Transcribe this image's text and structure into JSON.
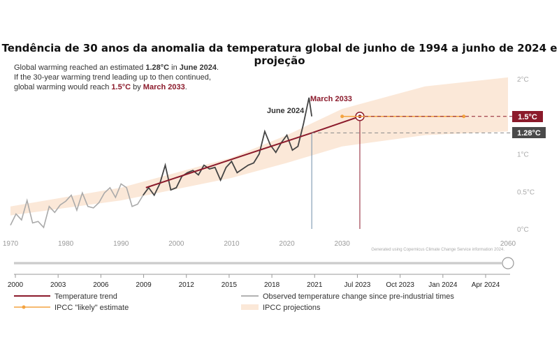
{
  "chart_data": {
    "type": "line",
    "title": "Tendência de 30 anos da anomalia da temperatura global de junho de 1994 a junho de 2024 e projeção",
    "note": {
      "line1_a": "Global warming reached an estimated ",
      "line1_b": "1.28°C",
      "line1_c": " in ",
      "line1_d": "June 2024",
      "line1_e": ".",
      "line2": "If the 30-year warming trend leading up to then continued,",
      "line3_a": "global warming would reach ",
      "line3_b": "1.5°C",
      "line3_c": " by ",
      "line3_d": "March 2033",
      "line3_e": "."
    },
    "xlim": [
      1970,
      2060
    ],
    "ylim": [
      0,
      2
    ],
    "x_ticks": [
      "1970",
      "1980",
      "1990",
      "2000",
      "2010",
      "2020",
      "2030",
      "2060"
    ],
    "y_ticks": [
      "0°C",
      "0.5°C",
      "1°C",
      "2°C"
    ],
    "annotations": {
      "june_label": "June 2024",
      "march_label": "March 2033",
      "badge_15": "1.5°C",
      "badge_128": "1.28°C"
    },
    "credit": "Generated using Copernicus Climate Change Service information 2024.",
    "series": [
      {
        "name": "Observed temperature change since pre-industrial times",
        "color": "#444444",
        "points": [
          [
            1970,
            0.05
          ],
          [
            1971,
            0.2
          ],
          [
            1972,
            0.12
          ],
          [
            1973,
            0.38
          ],
          [
            1974,
            0.08
          ],
          [
            1975,
            0.1
          ],
          [
            1976,
            0.02
          ],
          [
            1977,
            0.3
          ],
          [
            1978,
            0.22
          ],
          [
            1979,
            0.32
          ],
          [
            1980,
            0.37
          ],
          [
            1981,
            0.45
          ],
          [
            1982,
            0.25
          ],
          [
            1983,
            0.48
          ],
          [
            1984,
            0.3
          ],
          [
            1985,
            0.28
          ],
          [
            1986,
            0.35
          ],
          [
            1987,
            0.48
          ],
          [
            1988,
            0.55
          ],
          [
            1989,
            0.42
          ],
          [
            1990,
            0.6
          ],
          [
            1991,
            0.55
          ],
          [
            1992,
            0.3
          ],
          [
            1993,
            0.33
          ],
          [
            1994,
            0.45
          ],
          [
            1995,
            0.55
          ],
          [
            1996,
            0.45
          ],
          [
            1997,
            0.6
          ],
          [
            1998,
            0.85
          ],
          [
            1999,
            0.52
          ],
          [
            2000,
            0.55
          ],
          [
            2001,
            0.7
          ],
          [
            2002,
            0.75
          ],
          [
            2003,
            0.78
          ],
          [
            2004,
            0.72
          ],
          [
            2005,
            0.85
          ],
          [
            2006,
            0.8
          ],
          [
            2007,
            0.82
          ],
          [
            2008,
            0.65
          ],
          [
            2009,
            0.82
          ],
          [
            2010,
            0.9
          ],
          [
            2011,
            0.75
          ],
          [
            2012,
            0.8
          ],
          [
            2013,
            0.85
          ],
          [
            2014,
            0.88
          ],
          [
            2015,
            1.0
          ],
          [
            2016,
            1.3
          ],
          [
            2017,
            1.12
          ],
          [
            2018,
            1.02
          ],
          [
            2019,
            1.15
          ],
          [
            2020,
            1.25
          ],
          [
            2021,
            1.05
          ],
          [
            2022,
            1.1
          ],
          [
            2023,
            1.4
          ],
          [
            2024,
            1.75
          ],
          [
            2024.5,
            1.5
          ]
        ]
      },
      {
        "name": "Temperature trend",
        "color": "#8b1a2b",
        "points": [
          [
            1994.5,
            0.55
          ],
          [
            2024.5,
            1.28
          ],
          [
            2033.2,
            1.5
          ]
        ]
      },
      {
        "name": "IPCC \"likely\" estimate",
        "color": "#f4a340",
        "points": [
          [
            2030,
            1.5
          ],
          [
            2052,
            1.5
          ]
        ]
      },
      {
        "name": "IPCC projections",
        "color": "#fbe8d8",
        "lower": [
          [
            1970,
            0.18
          ],
          [
            1990,
            0.38
          ],
          [
            2010,
            0.68
          ],
          [
            2020,
            0.88
          ],
          [
            2030,
            1.1
          ],
          [
            2045,
            1.25
          ],
          [
            2060,
            1.3
          ]
        ],
        "upper": [
          [
            1970,
            0.3
          ],
          [
            1990,
            0.55
          ],
          [
            2010,
            0.95
          ],
          [
            2020,
            1.25
          ],
          [
            2030,
            1.6
          ],
          [
            2045,
            1.9
          ],
          [
            2060,
            2.02
          ]
        ]
      }
    ],
    "timeline": {
      "labels": [
        "2000",
        "2003",
        "2006",
        "2009",
        "2012",
        "2015",
        "2018",
        "2021",
        "Jul 2023",
        "Oct 2023",
        "Jan 2024",
        "Apr 2024"
      ]
    },
    "legend": [
      {
        "label": "Temperature trend",
        "color": "#8b1a2b",
        "style": "line"
      },
      {
        "label": "Observed temperature change since pre-industrial times",
        "color": "#666666",
        "style": "thin"
      },
      {
        "label": "IPCC \"likely\" estimate",
        "color": "#f4a340",
        "style": "dot-line"
      },
      {
        "label": "IPCC projections",
        "color": "#fbe8d8",
        "style": "band"
      }
    ]
  }
}
